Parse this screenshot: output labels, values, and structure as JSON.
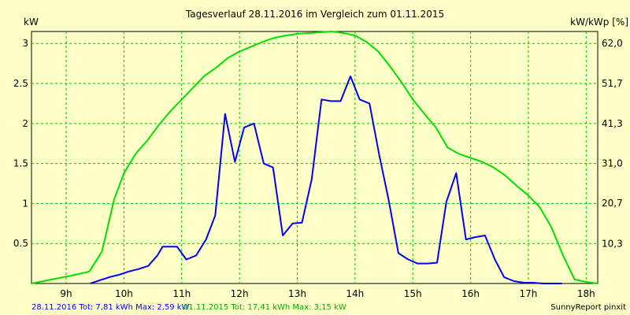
{
  "chart_data": {
    "type": "line",
    "title": "Tagesverlauf 28.11.2016 im Vergleich zum 01.11.2015",
    "ylabel_left": "kW",
    "ylabel_right": "kW/kWp [%]",
    "xlim_hours": [
      8.4,
      18.2
    ],
    "ylim": [
      0,
      3.15
    ],
    "x_ticks": [
      "9h",
      "10h",
      "11h",
      "12h",
      "13h",
      "14h",
      "15h",
      "16h",
      "17h",
      "18h"
    ],
    "x_tick_hours": [
      9,
      10,
      11,
      12,
      13,
      14,
      15,
      16,
      17,
      18
    ],
    "y_ticks": [
      "0.5",
      "1",
      "1.5",
      "2",
      "2.5",
      "3"
    ],
    "y_tick_values": [
      0.5,
      1,
      1.5,
      2,
      2.5,
      3
    ],
    "y2_ticks": [
      "10,3",
      "20,7",
      "31,0",
      "41,3",
      "51,7",
      "62,0"
    ],
    "y2_tick_values": [
      10.3,
      20.7,
      31.0,
      41.3,
      51.7,
      62.0
    ],
    "y2_max_percent": 62.0,
    "grid": true,
    "series": [
      {
        "name": "28.11.2016",
        "color": "#0000ff",
        "x": [
          9.42,
          9.58,
          9.75,
          9.92,
          10.08,
          10.25,
          10.42,
          10.58,
          10.67,
          10.92,
          11.08,
          11.25,
          11.42,
          11.58,
          11.75,
          11.92,
          12.08,
          12.25,
          12.42,
          12.58,
          12.75,
          12.92,
          13.08,
          13.25,
          13.42,
          13.58,
          13.75,
          13.92,
          14.08,
          14.25,
          14.42,
          14.58,
          14.75,
          14.92,
          15.08,
          15.25,
          15.42,
          15.58,
          15.75,
          15.92,
          16.08,
          16.25,
          16.42,
          16.58,
          16.75,
          16.92,
          17.08,
          17.25,
          17.42,
          17.58
        ],
        "y": [
          0.0,
          0.04,
          0.08,
          0.11,
          0.15,
          0.18,
          0.22,
          0.35,
          0.46,
          0.46,
          0.3,
          0.35,
          0.55,
          0.85,
          2.12,
          1.52,
          1.95,
          2.0,
          1.5,
          1.45,
          0.6,
          0.75,
          0.76,
          1.3,
          2.3,
          2.28,
          2.28,
          2.59,
          2.3,
          2.25,
          1.6,
          1.05,
          0.38,
          0.3,
          0.25,
          0.25,
          0.26,
          1.02,
          1.38,
          0.55,
          0.58,
          0.6,
          0.3,
          0.08,
          0.03,
          0.01,
          0.01,
          0.0,
          0.0,
          0.0
        ],
        "total_kwh": "7,81",
        "max_kw": "2,59"
      },
      {
        "name": "01.11.2015",
        "color": "#00e000",
        "x": [
          8.4,
          8.75,
          9.1,
          9.4,
          9.62,
          9.83,
          10.0,
          10.2,
          10.42,
          10.6,
          10.8,
          11.0,
          11.2,
          11.4,
          11.6,
          11.8,
          12.0,
          12.2,
          12.4,
          12.6,
          12.8,
          13.0,
          13.2,
          13.4,
          13.6,
          13.8,
          14.0,
          14.2,
          14.4,
          14.6,
          14.8,
          15.0,
          15.2,
          15.4,
          15.6,
          15.8,
          16.0,
          16.2,
          16.4,
          16.6,
          16.8,
          17.0,
          17.2,
          17.4,
          17.6,
          17.8,
          18.0,
          18.2
        ],
        "y": [
          0.0,
          0.05,
          0.1,
          0.15,
          0.4,
          1.05,
          1.38,
          1.62,
          1.8,
          1.98,
          2.15,
          2.3,
          2.45,
          2.6,
          2.7,
          2.82,
          2.9,
          2.96,
          3.02,
          3.07,
          3.1,
          3.12,
          3.13,
          3.14,
          3.15,
          3.13,
          3.1,
          3.02,
          2.9,
          2.72,
          2.52,
          2.3,
          2.12,
          1.95,
          1.7,
          1.62,
          1.57,
          1.52,
          1.45,
          1.35,
          1.22,
          1.1,
          0.95,
          0.7,
          0.35,
          0.05,
          0.02,
          0.0
        ],
        "total_kwh": "17,41",
        "max_kw": "3,15"
      }
    ]
  },
  "footer": {
    "series1_text": "28.11.2016 Tot: 7,81 kWh Max: 2,59 kW",
    "series2_text": "01.11.2015 Tot: 17,41 kWh Max: 3,15 kW",
    "credit": "SunnyReport pinxit"
  }
}
